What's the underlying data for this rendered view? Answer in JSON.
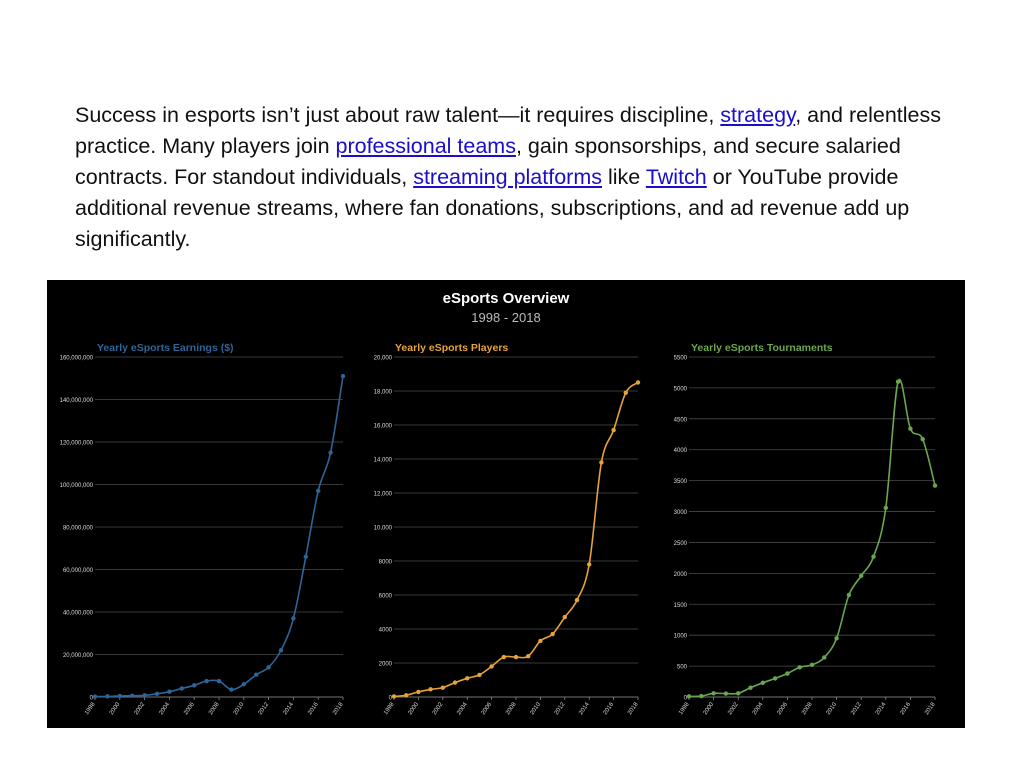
{
  "paragraph": {
    "t1": "Success in esports isn’t just about raw talent—it requires discipline, ",
    "link1": "strategy",
    "t2": ", and relentless practice. Many players join ",
    "link2": "professional teams",
    "t3": ", gain sponsorships, and secure salaried contracts. For standout individuals, ",
    "link3": "streaming platforms",
    "t4": " like ",
    "link4": "Twitch",
    "t5": " or YouTube provide additional revenue streams, where fan donations, subscriptions, and ad revenue add up significantly."
  },
  "figure": {
    "title": "eSports Overview",
    "subtitle": "1998 - 2018"
  },
  "chart_data": [
    {
      "type": "line",
      "title": "Yearly eSports Earnings ($)",
      "color": "#2f6496",
      "x": [
        1998,
        1999,
        2000,
        2001,
        2002,
        2003,
        2004,
        2005,
        2006,
        2007,
        2008,
        2009,
        2010,
        2011,
        2012,
        2013,
        2014,
        2015,
        2016,
        2017,
        2018
      ],
      "xticks": [
        "1998",
        "2000",
        "2002",
        "2004",
        "2006",
        "2008",
        "2010",
        "2012",
        "2014",
        "2016",
        "2018"
      ],
      "values": [
        200000,
        300000,
        500000,
        600000,
        800000,
        1500000,
        2500000,
        4000000,
        5500000,
        7500000,
        7500000,
        3500000,
        6000000,
        10500000,
        14000000,
        22000000,
        37000000,
        66000000,
        97000000,
        115000000,
        151000000
      ],
      "ylim": [
        0,
        160000000
      ],
      "yticks": [
        "0",
        "20,000,000",
        "40,000,000",
        "60,000,000",
        "80,000,000",
        "100,000,000",
        "120,000,000",
        "140,000,000",
        "160,000,000"
      ],
      "grid": true
    },
    {
      "type": "line",
      "title": "Yearly eSports Players",
      "color": "#e6a33a",
      "x": [
        1998,
        1999,
        2000,
        2001,
        2002,
        2003,
        2004,
        2005,
        2006,
        2007,
        2008,
        2009,
        2010,
        2011,
        2012,
        2013,
        2014,
        2015,
        2016,
        2017,
        2018
      ],
      "xticks": [
        "1998",
        "2000",
        "2002",
        "2004",
        "2006",
        "2008",
        "2010",
        "2012",
        "2014",
        "2016",
        "2018"
      ],
      "values": [
        30,
        100,
        300,
        450,
        550,
        850,
        1100,
        1300,
        1800,
        2350,
        2350,
        2400,
        3300,
        3700,
        4700,
        5700,
        7800,
        13800,
        15700,
        17900,
        18500
      ],
      "ylim": [
        0,
        20000
      ],
      "yticks": [
        "0",
        "2000",
        "4000",
        "6000",
        "8000",
        "10,000",
        "12,000",
        "14,000",
        "16,000",
        "18,000",
        "20,000"
      ],
      "grid": true
    },
    {
      "type": "line",
      "title": "Yearly eSports Tournaments",
      "color": "#6aa64e",
      "x": [
        1998,
        1999,
        2000,
        2001,
        2002,
        2003,
        2004,
        2005,
        2006,
        2007,
        2008,
        2009,
        2010,
        2011,
        2012,
        2013,
        2014,
        2015,
        2016,
        2017,
        2018
      ],
      "xticks": [
        "1998",
        "2000",
        "2002",
        "2004",
        "2006",
        "2008",
        "2010",
        "2012",
        "2014",
        "2016",
        "2018"
      ],
      "values": [
        10,
        15,
        60,
        55,
        60,
        150,
        230,
        300,
        380,
        480,
        520,
        640,
        950,
        1650,
        1960,
        2270,
        3060,
        5100,
        4340,
        4170,
        3420
      ],
      "ylim": [
        0,
        5500
      ],
      "yticks": [
        "0",
        "500",
        "1000",
        "1500",
        "2000",
        "2500",
        "3000",
        "3500",
        "4000",
        "4500",
        "5000",
        "5500"
      ],
      "grid": true
    }
  ]
}
